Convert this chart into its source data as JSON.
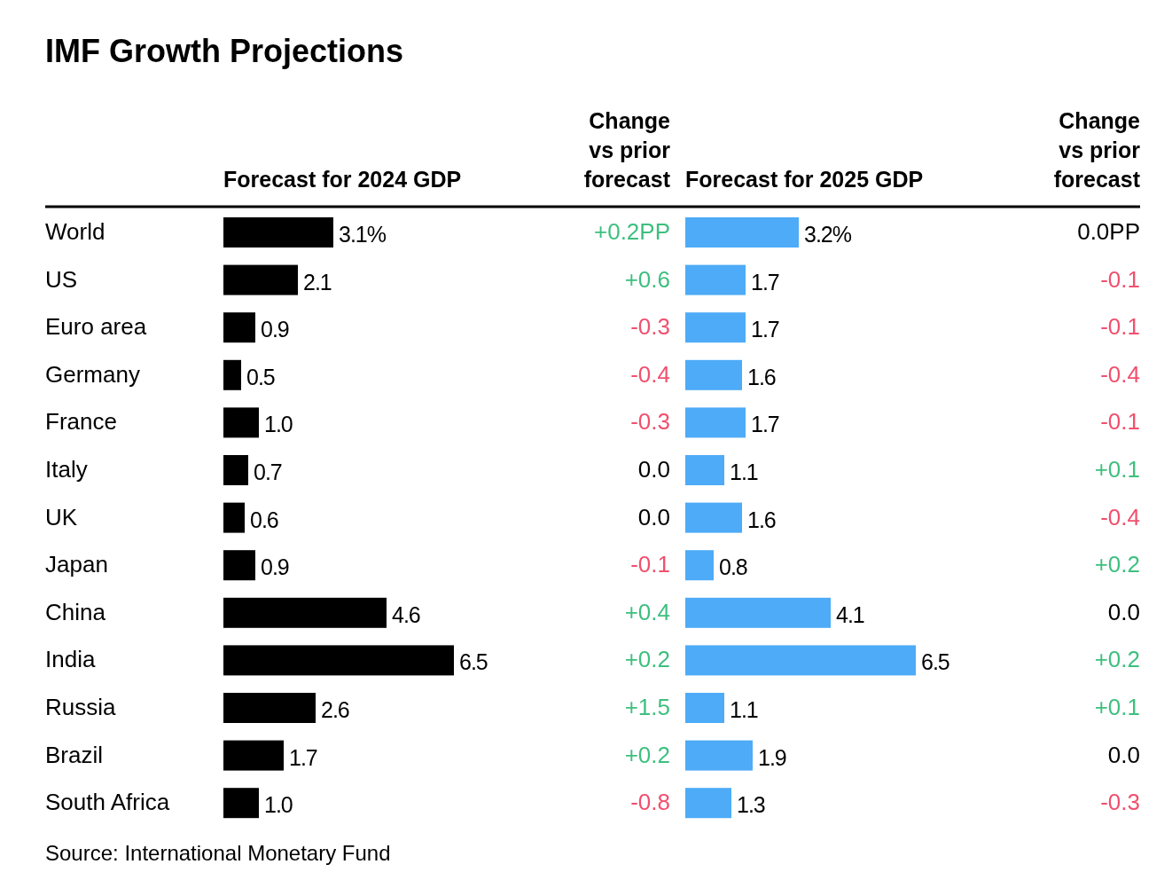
{
  "chart_data": [
    {
      "type": "bar",
      "orientation": "horizontal",
      "title": "IMF Growth Projections",
      "xlabel": "Forecast for 2024 GDP",
      "categories": [
        "World",
        "US",
        "Euro area",
        "Germany",
        "France",
        "Italy",
        "UK",
        "Japan",
        "China",
        "India",
        "Russia",
        "Brazil",
        "South Africa"
      ],
      "values": [
        3.1,
        2.1,
        0.9,
        0.5,
        1.0,
        0.7,
        0.6,
        0.9,
        4.6,
        6.5,
        2.6,
        1.7,
        1.0
      ],
      "value_labels": [
        "3.1%",
        "2.1",
        "0.9",
        "0.5",
        "1.0",
        "0.7",
        "0.6",
        "0.9",
        "4.6",
        "6.5",
        "2.6",
        "1.7",
        "1.0"
      ],
      "color": "#000000",
      "annotations": [
        "Source: International Monetary Fund"
      ]
    },
    {
      "type": "other",
      "title": "Change vs prior forecast",
      "annotations": [
        "+0.2PP",
        "+0.6",
        "-0.3",
        "-0.4",
        "-0.3",
        "0.0",
        "0.0",
        "-0.1",
        "+0.4",
        "+0.2",
        "+1.5",
        "+0.2",
        "-0.8"
      ],
      "colors": [
        "#3dbf7f",
        "#3dbf7f",
        "#f0506e",
        "#f0506e",
        "#f0506e",
        "#000000",
        "#000000",
        "#f0506e",
        "#3dbf7f",
        "#3dbf7f",
        "#3dbf7f",
        "#3dbf7f",
        "#f0506e"
      ]
    },
    {
      "type": "bar",
      "orientation": "horizontal",
      "xlabel": "Forecast for 2025 GDP",
      "categories": [
        null,
        null,
        null,
        null,
        null,
        null,
        null,
        null,
        null,
        null,
        null,
        null,
        null
      ],
      "values": [
        3.2,
        1.7,
        1.7,
        1.6,
        1.7,
        1.1,
        1.6,
        0.8,
        4.1,
        6.5,
        1.1,
        1.9,
        1.3
      ],
      "value_labels": [
        "3.2%",
        "1.7",
        "1.7",
        "1.6",
        "1.7",
        "1.1",
        "1.6",
        "0.8",
        "4.1",
        "6.5",
        "1.1",
        "1.9",
        "1.3"
      ],
      "color": "#4dabf7"
    },
    {
      "type": "other",
      "title": "Change vs prior forecast",
      "annotations": [
        "0.0PP",
        "-0.1",
        "-0.1",
        "-0.4",
        "-0.1",
        "+0.1",
        "-0.4",
        "+0.2",
        "0.0",
        "+0.2",
        "+0.1",
        "0.0",
        "-0.3"
      ],
      "colors": [
        "#000000",
        "#f0506e",
        "#f0506e",
        "#f0506e",
        "#f0506e",
        "#3dbf7f",
        "#f0506e",
        "#3dbf7f",
        "#000000",
        "#3dbf7f",
        "#3dbf7f",
        "#000000",
        "#f0506e"
      ]
    }
  ]
}
